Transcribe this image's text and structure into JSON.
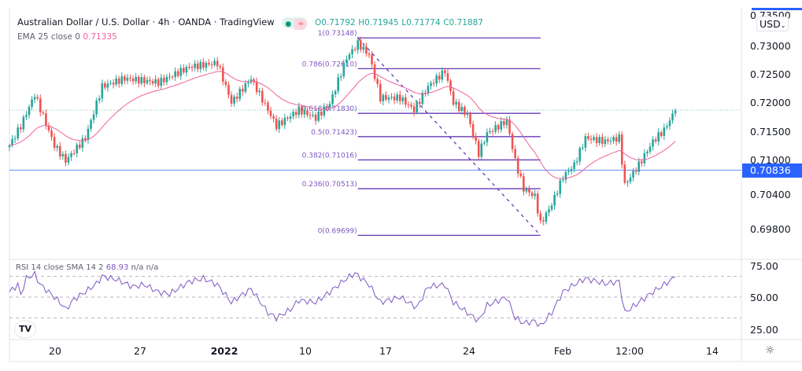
{
  "header": {
    "title": "Australian Dollar / U.S. Dollar · 4h · OANDA · TradingView",
    "ohlc": {
      "o": "O0.71792",
      "h": "H0.71945",
      "l": "L0.71774",
      "c": "C0.71887"
    },
    "status_icons": [
      "market-open-dot-icon",
      "approx-data-icon"
    ],
    "ema_label": "EMA 25 close 0",
    "ema_value": "0.71335",
    "rsi_label": "RSI 14 close SMA 14 2",
    "rsi_value": "68.93",
    "rsi_na1": "n/a",
    "rsi_na2": "n/a"
  },
  "price_axis": {
    "currency": "USD",
    "ticks": [
      "0.73500",
      "0.73000",
      "0.72500",
      "0.72000",
      "0.71500",
      "0.71000",
      "0.70400",
      "0.69800"
    ],
    "current_price": "0.70836"
  },
  "rsi_axis": {
    "ticks": [
      "75.00",
      "50.00",
      "25.00"
    ]
  },
  "time_axis": {
    "labels": [
      "20",
      "27",
      "2022",
      "10",
      "17",
      "24",
      "Feb",
      "12:00",
      "14"
    ]
  },
  "colors": {
    "up": "#26a69a",
    "down": "#ef5350",
    "ema": "#f0609b",
    "rsi": "#7e57c2",
    "fib": "#673ab7",
    "hline": "#2962ff"
  },
  "fib": {
    "levels": [
      {
        "label": "1(0.73148)",
        "price": 0.73148
      },
      {
        "label": "0.786(0.72610)",
        "price": 0.7261
      },
      {
        "label": "0.618(0.71830)",
        "price": 0.7183
      },
      {
        "label": "0.5(0.71423)",
        "price": 0.71423
      },
      {
        "label": "0.382(0.71016)",
        "price": 0.71016
      },
      {
        "label": "0.236(0.70513)",
        "price": 0.70513
      },
      {
        "label": "0(0.69699)",
        "price": 0.69699
      }
    ]
  },
  "chart_data": {
    "type": "candlestick",
    "timeframe": "4h",
    "price_keypoints": [
      [
        0,
        0.7127
      ],
      [
        4,
        0.7161
      ],
      [
        9,
        0.7216
      ],
      [
        16,
        0.7127
      ],
      [
        20,
        0.71
      ],
      [
        27,
        0.714
      ],
      [
        33,
        0.723
      ],
      [
        41,
        0.7244
      ],
      [
        53,
        0.7237
      ],
      [
        64,
        0.7264
      ],
      [
        74,
        0.7271
      ],
      [
        79,
        0.7202
      ],
      [
        86,
        0.7244
      ],
      [
        95,
        0.7161
      ],
      [
        103,
        0.7189
      ],
      [
        109,
        0.7175
      ],
      [
        114,
        0.72
      ],
      [
        120,
        0.728
      ],
      [
        124,
        0.7305
      ],
      [
        128,
        0.7285
      ],
      [
        132,
        0.721
      ],
      [
        139,
        0.721
      ],
      [
        144,
        0.7189
      ],
      [
        149,
        0.723
      ],
      [
        155,
        0.7257
      ],
      [
        158,
        0.7202
      ],
      [
        163,
        0.718
      ],
      [
        167,
        0.7113
      ],
      [
        170,
        0.7148
      ],
      [
        177,
        0.717
      ],
      [
        180,
        0.71
      ],
      [
        183,
        0.7051
      ],
      [
        187,
        0.7038
      ],
      [
        189,
        0.699
      ],
      [
        193,
        0.7024
      ],
      [
        197,
        0.7072
      ],
      [
        201,
        0.7093
      ],
      [
        205,
        0.714
      ],
      [
        212,
        0.7134
      ],
      [
        217,
        0.714
      ],
      [
        219,
        0.7058
      ],
      [
        224,
        0.7093
      ],
      [
        229,
        0.7134
      ],
      [
        233,
        0.7154
      ],
      [
        237,
        0.7188
      ]
    ],
    "rsi_keypoints": [
      [
        0,
        55
      ],
      [
        3,
        62
      ],
      [
        4,
        52
      ],
      [
        6,
        68
      ],
      [
        9,
        72
      ],
      [
        11,
        62
      ],
      [
        16,
        50
      ],
      [
        19,
        42
      ],
      [
        20,
        38
      ],
      [
        23,
        48
      ],
      [
        27,
        55
      ],
      [
        31,
        63
      ],
      [
        33,
        70
      ],
      [
        38,
        67
      ],
      [
        44,
        60
      ],
      [
        48,
        62
      ],
      [
        53,
        55
      ],
      [
        57,
        53
      ],
      [
        64,
        65
      ],
      [
        69,
        68
      ],
      [
        74,
        62
      ],
      [
        79,
        45
      ],
      [
        86,
        58
      ],
      [
        92,
        35
      ],
      [
        95,
        30
      ],
      [
        100,
        38
      ],
      [
        103,
        47
      ],
      [
        109,
        45
      ],
      [
        114,
        55
      ],
      [
        120,
        68
      ],
      [
        123,
        73
      ],
      [
        128,
        62
      ],
      [
        132,
        45
      ],
      [
        139,
        50
      ],
      [
        145,
        40
      ],
      [
        149,
        60
      ],
      [
        155,
        62
      ],
      [
        158,
        45
      ],
      [
        163,
        35
      ],
      [
        167,
        27
      ],
      [
        170,
        42
      ],
      [
        177,
        50
      ],
      [
        180,
        30
      ],
      [
        183,
        25
      ],
      [
        187,
        27
      ],
      [
        189,
        22
      ],
      [
        193,
        35
      ],
      [
        197,
        55
      ],
      [
        201,
        62
      ],
      [
        205,
        68
      ],
      [
        212,
        63
      ],
      [
        217,
        65
      ],
      [
        219,
        35
      ],
      [
        224,
        45
      ],
      [
        229,
        55
      ],
      [
        233,
        62
      ],
      [
        237,
        69
      ]
    ],
    "horizontal_line": 0.70836,
    "rsi_levels": [
      70,
      50,
      30
    ],
    "ema_period": 25
  }
}
